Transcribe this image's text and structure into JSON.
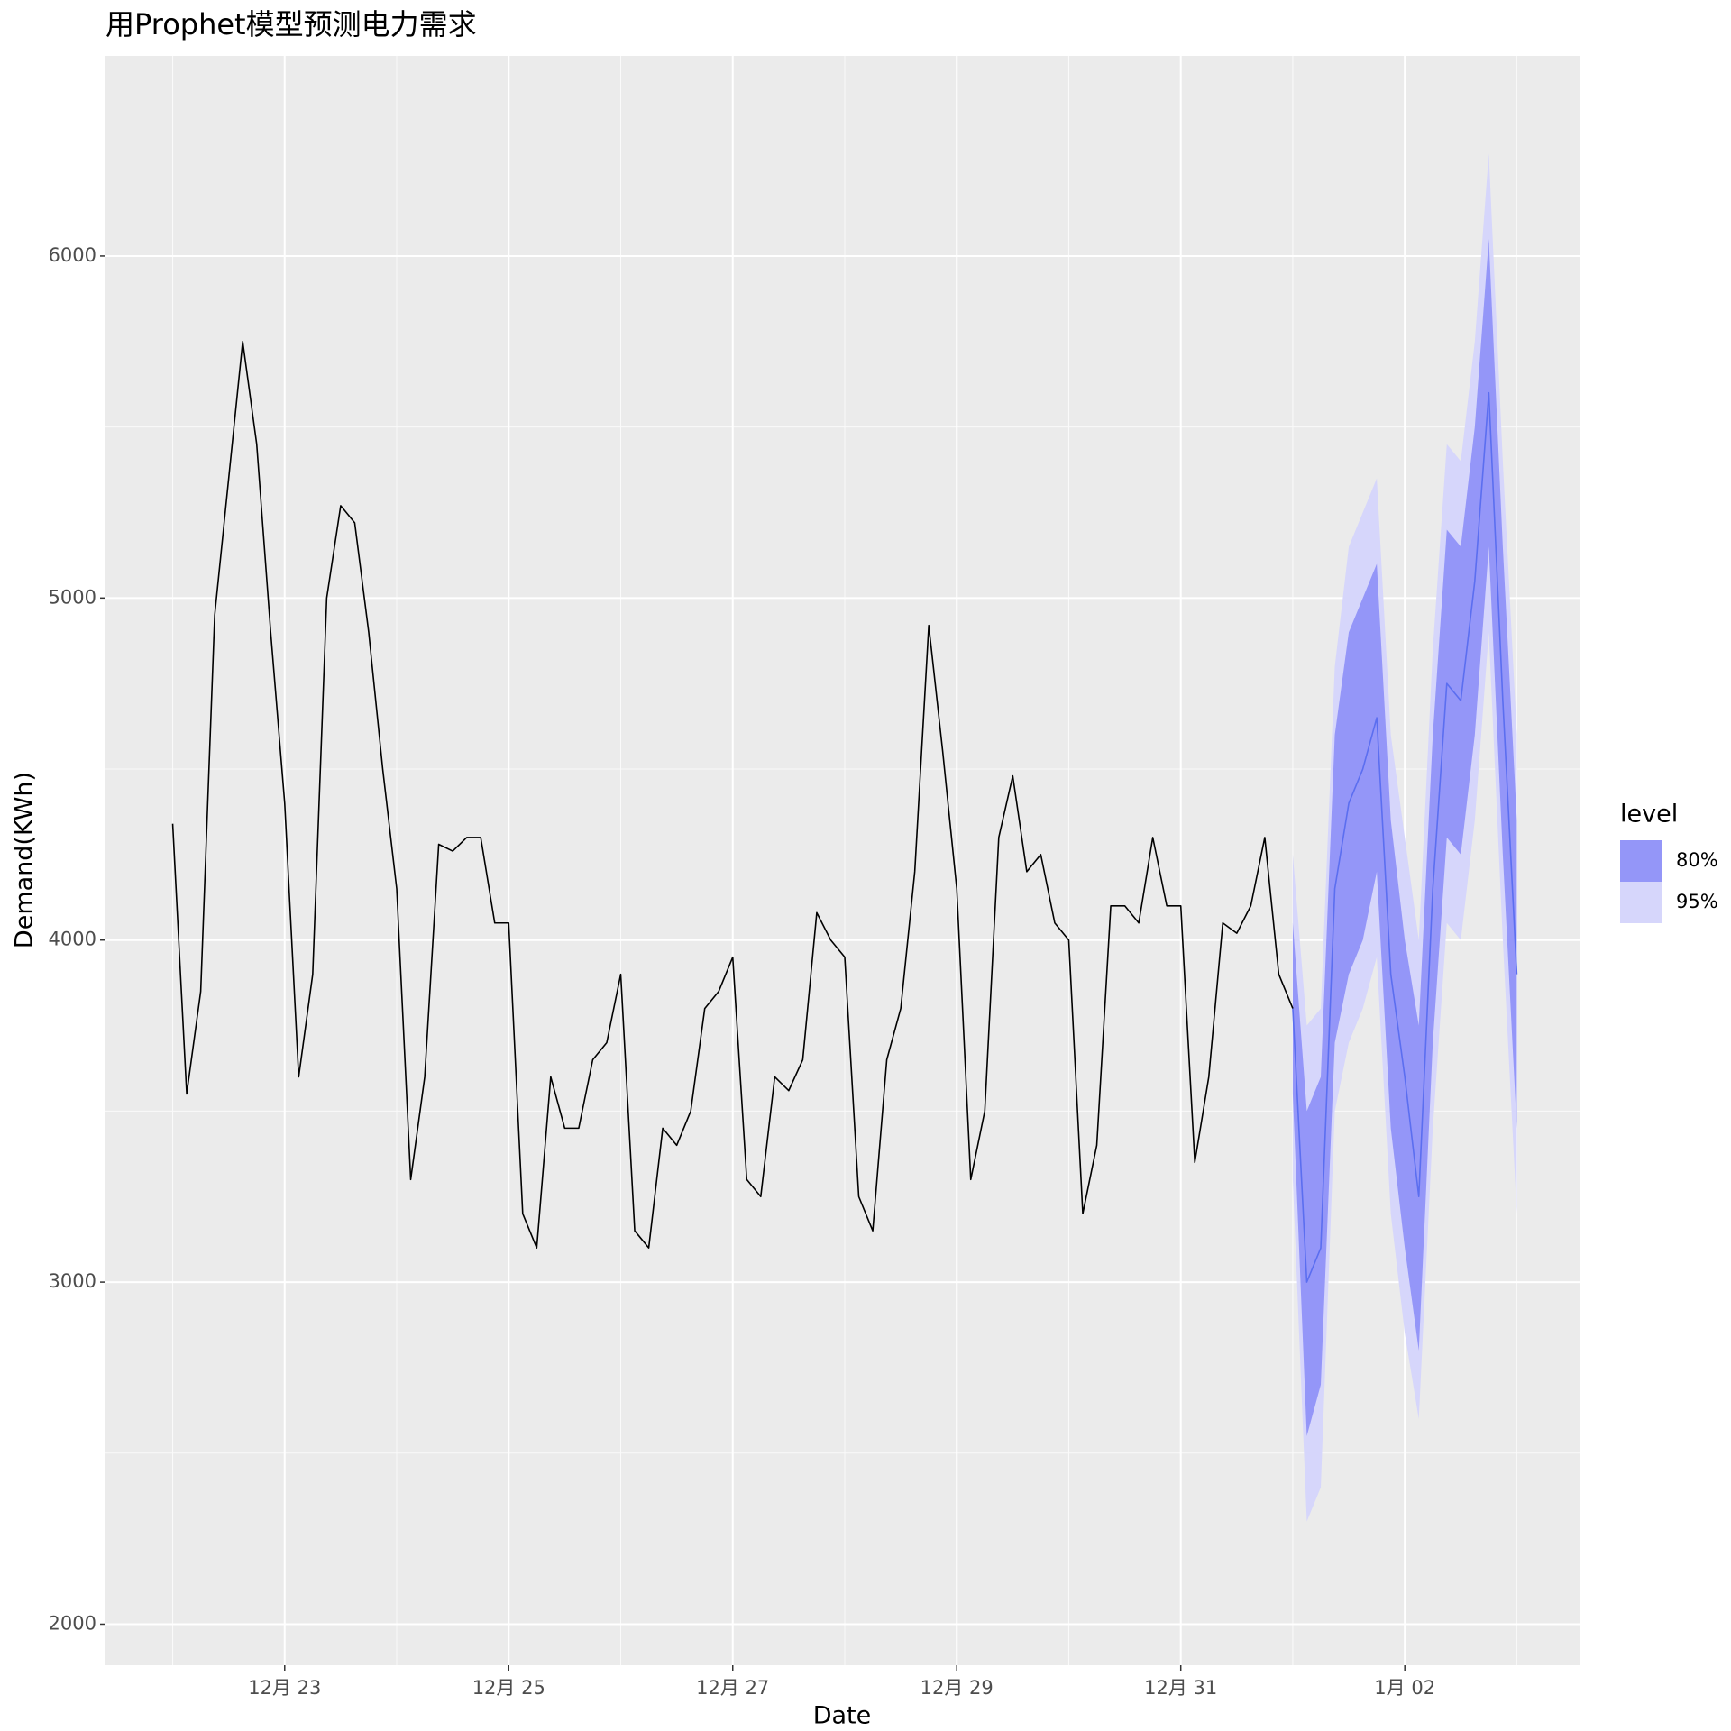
{
  "chart_data": {
    "type": "forecast",
    "title": "用Prophet模型预测电力需求",
    "x_label": "Date",
    "y_label": "Demand(KWh)",
    "xlim": [
      21.4,
      34.56
    ],
    "ylim": [
      1880,
      6585
    ],
    "xticks": [
      {
        "value": 23,
        "label": "12月 23"
      },
      {
        "value": 25,
        "label": "12月 25"
      },
      {
        "value": 27,
        "label": "12月 27"
      },
      {
        "value": 29,
        "label": "12月 29"
      },
      {
        "value": 31,
        "label": "12月 31"
      },
      {
        "value": 33,
        "label": "1月 02"
      }
    ],
    "yticks": [
      2000,
      3000,
      4000,
      5000,
      6000
    ],
    "grid": true,
    "legend_title": "level",
    "history": {
      "color": "#000000",
      "x": [
        22,
        22.125,
        22.25,
        22.375,
        22.5,
        22.625,
        22.75,
        22.875,
        23,
        23.125,
        23.25,
        23.375,
        23.5,
        23.625,
        23.75,
        23.875,
        24,
        24.125,
        24.25,
        24.375,
        24.5,
        24.625,
        24.75,
        24.875,
        25,
        25.125,
        25.25,
        25.375,
        25.5,
        25.625,
        25.75,
        25.875,
        26,
        26.125,
        26.25,
        26.375,
        26.5,
        26.625,
        26.75,
        26.875,
        27,
        27.125,
        27.25,
        27.375,
        27.5,
        27.625,
        27.75,
        27.875,
        28,
        28.125,
        28.25,
        28.375,
        28.5,
        28.625,
        28.75,
        28.875,
        29,
        29.125,
        29.25,
        29.375,
        29.5,
        29.625,
        29.75,
        29.875,
        30,
        30.125,
        30.25,
        30.375,
        30.5,
        30.625,
        30.75,
        30.875,
        31,
        31.125,
        31.25,
        31.375,
        31.5,
        31.625,
        31.75,
        31.875,
        32
      ],
      "values": [
        4340,
        3550,
        3850,
        4950,
        5350,
        5750,
        5450,
        4900,
        4400,
        3600,
        3900,
        5000,
        5270,
        5220,
        4900,
        4500,
        4150,
        3300,
        3600,
        4280,
        4260,
        4300,
        4300,
        4050,
        4050,
        3200,
        3100,
        3600,
        3450,
        3450,
        3650,
        3700,
        3900,
        3150,
        3100,
        3450,
        3400,
        3500,
        3800,
        3850,
        3950,
        3300,
        3250,
        3600,
        3560,
        3650,
        4080,
        4000,
        3950,
        3250,
        3150,
        3650,
        3800,
        4200,
        4920,
        4550,
        4150,
        3300,
        3500,
        4300,
        4480,
        4200,
        4250,
        4050,
        4000,
        3200,
        3400,
        4100,
        4100,
        4050,
        4300,
        4100,
        4100,
        3350,
        3600,
        4050,
        4020,
        4100,
        4300,
        3900,
        3800
      ]
    },
    "forecast": {
      "color": "#5b6ef0",
      "x": [
        32,
        32.125,
        32.25,
        32.375,
        32.5,
        32.625,
        32.75,
        32.875,
        33,
        33.125,
        33.25,
        33.375,
        33.5,
        33.625,
        33.75,
        33.875,
        34
      ],
      "values": [
        3800,
        3000,
        3100,
        4150,
        4400,
        4500,
        4650,
        3900,
        3600,
        3250,
        4150,
        4750,
        4700,
        5050,
        5600,
        4700,
        3900
      ]
    },
    "intervals": [
      {
        "name": "95%",
        "color": "#d6d6fb",
        "lower": [
          3300,
          2300,
          2400,
          3500,
          3700,
          3800,
          3950,
          3200,
          2850,
          2600,
          3450,
          4050,
          4000,
          4350,
          4900,
          4000,
          3200
        ],
        "upper": [
          4250,
          3750,
          3800,
          4800,
          5150,
          5250,
          5350,
          4600,
          4300,
          4000,
          4850,
          5450,
          5400,
          5750,
          6300,
          5400,
          4600
        ]
      },
      {
        "name": "80%",
        "color": "#9496f8",
        "lower": [
          3550,
          2550,
          2700,
          3700,
          3900,
          4000,
          4200,
          3450,
          3100,
          2800,
          3700,
          4300,
          4250,
          4600,
          5150,
          4250,
          3450
        ],
        "upper": [
          4050,
          3500,
          3600,
          4600,
          4900,
          5000,
          5100,
          4350,
          4000,
          3750,
          4600,
          5200,
          5150,
          5500,
          6050,
          5150,
          4350
        ]
      }
    ]
  }
}
